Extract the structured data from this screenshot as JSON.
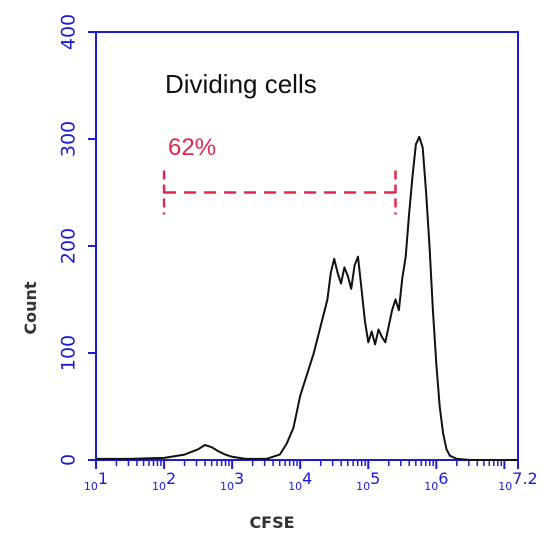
{
  "chart_data": {
    "type": "line",
    "xlabel": "CFSE",
    "ylabel": "Count",
    "x_scale": "log10",
    "xlim": [
      1,
      7.2
    ],
    "ylim": [
      0,
      400
    ],
    "yticks": [
      0,
      100,
      200,
      300,
      400
    ],
    "xtick_labels": [
      "10^1",
      "10^2",
      "10^3",
      "10^4",
      "10^5",
      "10^6",
      "10^7.2"
    ],
    "annotations": {
      "title_text": "Dividing cells",
      "gate_label": "62%",
      "gate_range_log10": [
        2.0,
        5.4
      ],
      "gate_count": 250
    },
    "series": [
      {
        "x": [
          1.0,
          1.5,
          2.0,
          2.3,
          2.5,
          2.6,
          2.7,
          2.8,
          2.9,
          3.0,
          3.2,
          3.5,
          3.7,
          3.8,
          3.9,
          3.95,
          4.0,
          4.1,
          4.2,
          4.3,
          4.4,
          4.45,
          4.5,
          4.55,
          4.6,
          4.65,
          4.7,
          4.75,
          4.8,
          4.85,
          4.9,
          4.95,
          5.0,
          5.05,
          5.1,
          5.15,
          5.2,
          5.25,
          5.3,
          5.35,
          5.4,
          5.45,
          5.5,
          5.55,
          5.6,
          5.65,
          5.7,
          5.75,
          5.8,
          5.85,
          5.9,
          5.95,
          6.0,
          6.05,
          6.1,
          6.15,
          6.2,
          6.3,
          6.5,
          7.0,
          7.2
        ],
        "y": [
          1,
          1,
          2,
          5,
          10,
          14,
          12,
          8,
          5,
          3,
          1,
          1,
          5,
          15,
          30,
          45,
          60,
          80,
          100,
          125,
          150,
          175,
          188,
          175,
          165,
          180,
          172,
          160,
          182,
          190,
          160,
          130,
          110,
          120,
          108,
          122,
          115,
          110,
          125,
          140,
          150,
          140,
          170,
          190,
          230,
          265,
          295,
          302,
          292,
          250,
          200,
          140,
          90,
          50,
          25,
          10,
          4,
          1,
          0,
          0,
          0
        ]
      }
    ],
    "colors": {
      "axis": "#1b1bd6",
      "line": "#111111",
      "gate": "#e0284d"
    }
  }
}
